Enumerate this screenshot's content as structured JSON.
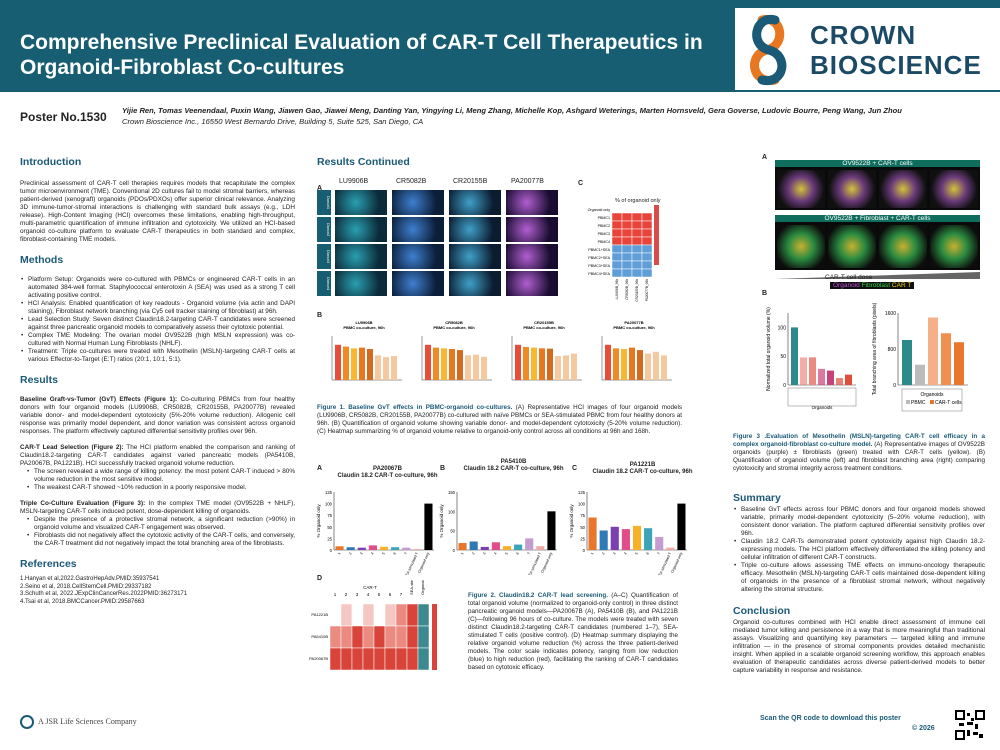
{
  "header": {
    "title": "Comprehensive Preclinical Evaluation of CAR-T Cell Therapeutics in Organoid-Fibroblast Co-cultures",
    "logo_line1": "CROWN",
    "logo_line2": "BIOSCIENCE"
  },
  "poster": {
    "number": "Poster No.1530",
    "authors": "Yijie Ren, Tomas Veenendaal, Puxin Wang, Jiawen Gao, Jiawei Meng, Danting Yan, Yingying Li, Meng Zhang, Michelle Kop, Ashgard Weterings, Marten Hornsveld, Gera Goverse, Ludovic Bourre, Peng Wang, Jun Zhou",
    "affiliation": "Crown Bioscience Inc., 16550 West Bernardo Drive, Building 5, Suite 525, San Diego, CA"
  },
  "intro": {
    "heading": "Introduction",
    "text": "Preclinical assessment of CAR-T cell therapies requires models that recapitulate the complex tumor microenvironment (TME). Conventional 2D cultures fail to model stromal barriers, whereas patient-derived (xenograft) organoids (PDOs/PDXOs) offer superior clinical relevance. Analyzing 3D immune-tumor-stromal interactions is challenging with standard bulk assays (e.g., LDH release). High-Content Imaging (HCI) overcomes these limitations, enabling high-throughput, multi-parametric quantification of immune infiltration and cytotoxicity. We utilized an HCI-based organoid co-culture platform to evaluate CAR-T therapeutics in both standard and complex, fibroblast-containing TME models."
  },
  "methods": {
    "heading": "Methods",
    "items": [
      "Platform Setup: Organoids were co-cultured with PBMCs or engineered CAR-T cells in an automated 384-well format. Staphylococcal enterotoxin A (SEA) was used as a strong T cell activating positive control.",
      "HCI Analysis: Enabled quantification of key readouts - Organoid volume (via actin and DAPI staining), Fibroblast network branching (via Cy5 cell tracker staining of fibroblast) at 96h.",
      "Lead Selection Study: Seven distinct Claudin18.2-targeting CAR-T candidates were screened against three pancreatic organoid models to comparatively assess their cytotoxic potential.",
      "Complex TME Modeling: The ovarian model OV9522B (high MSLN expression) was co-cultured with Normal Human Lung Fibroblasts (NHLF).",
      "Treatment: Triple co-cultures were treated with Mesothelin (MSLN)-targeting CAR-T cells at various Effector-to-Target (E:T) ratios (20:1, 10:1, 5:1)."
    ]
  },
  "results": {
    "heading": "Results",
    "p1_lead": "Baseline Graft-vs-Tumor (GvT) Effects (Figure 1):",
    "p1": " Co-culturing PBMCs from four healthy donors with four organoid models (LU9906B, CR5082B, CR20155B, PA20077B) revealed variable donor- and model-dependent cytotoxicity (5%-20% volume reduction). Allogenic cell response was primarily model dependent, and donor variation was consistent across organoid responses. The platform effectively captured differential sensitivity profiles over 96h.",
    "p2_lead": "CAR-T Lead Selection (Figure 2):",
    "p2": " The HCI platform enabled the comparison and ranking of Claudin18.2-targeting CAR-T candidates against varied pancreatic models (PA5410B, PA20067B, PA1221B). HCI successfully tracked organoid volume reduction.",
    "p2_items": [
      "The screen revealed a wide range of killing potency: the most potent CAR-T induced > 80% volume reduction in the most sensitive model.",
      "The weakest CAR-T showed ~10% reduction in a poorly responsive model."
    ],
    "p3_lead": "Triple Co-Culture Evaluation (Figure 3):",
    "p3": " In the complex TME model (OV9522B + NHLF), MSLN-targeting CAR-T cells induced potent, dose-dependent killing of organoids.",
    "p3_items": [
      "Despite the presence of a protective stromal network, a significant reduction (>90%) in organoid volume and visualized CAR-T engagement was observed.",
      "Fibroblasts did not negatively affect the cytotoxic activity of the CAR-T cells, and conversely, the CAR-T treatment did not negatively impact the total branching area of the fibroblasts."
    ]
  },
  "references": {
    "heading": "References",
    "items": [
      "1.Hanyan et al,2022.GastroHepAdv.PMID:35937541",
      "2.Seino et al, 2018.CellStemCell.PMID:29337182",
      "3.Schuth et al, 2022.JExpClinCancerRes.2022PMID:36273171",
      "4.Tsai et al, 2018.BMCCancer.PMID:29587663"
    ]
  },
  "footer": {
    "jsr": "A JSR Life Sciences Company",
    "qr_text": "Scan the QR code to download this poster",
    "copyright": "© 2026"
  },
  "results_cont": {
    "heading": "Results Continued"
  },
  "fig1": {
    "label_a": "A",
    "label_b": "B",
    "label_c": "C",
    "models": [
      "LU9906B",
      "CR5082B",
      "CR20155B",
      "PA20077B"
    ],
    "rows": [
      "Donor1",
      "Donor2",
      "Donor3",
      "Donor4"
    ],
    "heat_title": "% of organoid only",
    "heat_rows": [
      "Organoid only",
      "PBMC1",
      "PBMC2",
      "PBMC3",
      "PBMC4",
      "PBMC1+SEA",
      "PBMC2+SEA",
      "PBMC3+SEA",
      "PBMC4+SEA"
    ],
    "heat_cols": [
      "LU9906B_96h",
      "CR5082B_96h",
      "CR20155B_96h",
      "PA20077B_96h"
    ],
    "bar_titles": [
      "LU9906B\nPBMC co-culture, 96h",
      "CR5082B\nPBMC co-culture, 96h",
      "CR20155B\nPBMC co-culture, 96h",
      "PA20077B\nPBMC co-culture, 96h"
    ],
    "caption_title": "Figure 1. Baseline GvT effects in PBMC-organoid co-cultures.",
    "caption": " (A) Representative HCI images of four organoid models (LU9906B, CR5082B, CR20155B, PA20077B) co-cultured with naïve PBMCs or SEA-stimulated PBMC from four healthy donors at 96h. (B) Quantification of organoid volume showing variable donor- and model-dependent cytotoxicity (5-20% volume reduction). (C) Heatmap summarizing % of organoid volume relative to organoid-only control across all conditions at 96h and 168h."
  },
  "fig2": {
    "label_a": "A",
    "label_b": "B",
    "label_c": "C",
    "label_d": "D",
    "panels": [
      {
        "model": "PA20067B",
        "sub": "Claudin 18.2 CAR-T co-culture, 96h"
      },
      {
        "model": "PA5410B",
        "sub": "Claudin 18.2 CAR-T co-culture, 96h"
      },
      {
        "model": "PA1221B",
        "sub": "Claudin 18.2 CAR-T co-culture, 96h"
      }
    ],
    "ylabel": "% Organoid only",
    "heat_rows": [
      "PA1221B",
      "PA5410B",
      "PA20067B"
    ],
    "heat_header": "CAR-T",
    "heat_cols": [
      "1",
      "2",
      "3",
      "4",
      "5",
      "6",
      "7"
    ],
    "heat_extra": [
      "SEA-stimulated T",
      "Organoid only"
    ],
    "caption_title": "Figure 2. Claudin18.2 CAR-T lead screening.",
    "caption": " (A–C) Quantification of total organoid volume (normalized to organoid-only control) in three distinct pancreatic organoid models—PA20067B (A), PA5410B (B), and PA1221B (C)—following 96 hours of co-culture. The models were treated with seven distinct Claudin18.2-targeting CAR-T candidates (numbered 1–7), SEA-stimulated T cells (positive control). (D) Heatmap summary displaying the relative organoid volume reduction (%) across the three patient-derived models. The color scale indicates potency, ranging from low reduction (blue) to high reduction (red), facilitating the ranking of CAR-T candidates based on cytotoxic efficacy."
  },
  "fig3": {
    "label_a": "A",
    "label_b": "B",
    "img_top": "OV9522B + CAR-T cells",
    "img_bottom": "OV9522B + Fibroblast + CAR-T cells",
    "dose": "CAR-T cell dose",
    "legend_organoid": "Organoid",
    "legend_fibro": "Fibroblast",
    "legend_cart": "CAR T",
    "ylabel_left": "Normalized total organoid volume (%)",
    "ylabel_right": "Total branching area of fibroblasts (pixels)",
    "axis_label": "Organoids",
    "legend2_pbmc": "PBMC",
    "legend2_cart": "CAR-T cells",
    "caption_title": "Figure 3 .Evaluation of Mesothelin (MSLN)-targeting CAR-T cell efficacy in a complex organoid-fibroblast co-culture model.",
    "caption": " (A) Representative images of OV9522B organoids (purple) ± fibroblasts (green) treated with CAR-T cells (yellow). (B) Quantification of organoid volume (left) and fibroblast branching area (right) comparing cytotoxicity and stromal integrity across treatment conditions."
  },
  "summary": {
    "heading": "Summary",
    "items": [
      "Baseline GvT effects across four PBMC donors and four organoid models showed variable, primarily model-dependent cytotoxicity (5–20% volume reduction), with consistent donor variation. The platform captured differential sensitivity profiles over 96h.",
      "Claudin 18.2 CAR-Ts demonstrated potent cytotoxicity against high Claudin 18.2-expressing models. The HCI platform effectively differentiated the killing potency and cellular infiltration of different CAR-T constructs.",
      "Triple co-culture allows assessing TME effects on immuno-oncology therapeutic efficacy. Mesothelin (MSLN)-targeting CAR-T cells maintained dose-dependent killing of organoids in the presence of a fibroblast stromal network, without negatively altering the stromal structure."
    ]
  },
  "conclusion": {
    "heading": "Conclusion",
    "text": "Organoid co-cultures combined with HCI enable direct assessment of immune cell mediated tumor killing and persistence in a way that is more meaningful than traditional assays. Visualizing and quantifying key parameters — targeted killing and immune infiltration — in the presence of stromal components provides detailed mechanistic insight. When applied in a scalable organoid screening workflow, this approach enables evaluation of therapeutic candidates across diverse patient-derived models to better capture variability in response and resistance."
  },
  "colors": {
    "banner": "#175e72",
    "heading": "#1b5a77",
    "accent_orange": "#e87722"
  },
  "chart_data": [
    {
      "type": "bar",
      "id": "fig2a",
      "categories": [
        "1",
        "2",
        "3",
        "4",
        "5",
        "6",
        "7",
        "SEA-stimulated T",
        "Organoid only"
      ],
      "values": [
        8,
        6,
        5,
        10,
        7,
        6,
        5,
        2,
        100
      ],
      "ylim": [
        0,
        125
      ]
    },
    {
      "type": "bar",
      "id": "fig2b",
      "categories": [
        "1",
        "2",
        "3",
        "4",
        "5",
        "6",
        "7",
        "SEA-stimulated T",
        "Organoid only"
      ],
      "values": [
        18,
        22,
        8,
        20,
        10,
        14,
        30,
        10,
        100
      ],
      "ylim": [
        0,
        150
      ]
    },
    {
      "type": "bar",
      "id": "fig2c",
      "categories": [
        "1",
        "2",
        "3",
        "4",
        "5",
        "6",
        "7",
        "SEA-stimulated T",
        "Organoid only"
      ],
      "values": [
        70,
        42,
        50,
        45,
        52,
        47,
        28,
        5,
        100
      ],
      "ylim": [
        0,
        125
      ]
    },
    {
      "type": "bar",
      "id": "fig3b_left",
      "values": [
        100,
        48,
        48,
        28,
        25,
        12,
        18
      ],
      "ylim": [
        0,
        125
      ]
    },
    {
      "type": "bar",
      "id": "fig3b_right",
      "values": [
        1000,
        450,
        1500,
        1150,
        950
      ],
      "ylim": [
        0,
        1600
      ]
    }
  ]
}
